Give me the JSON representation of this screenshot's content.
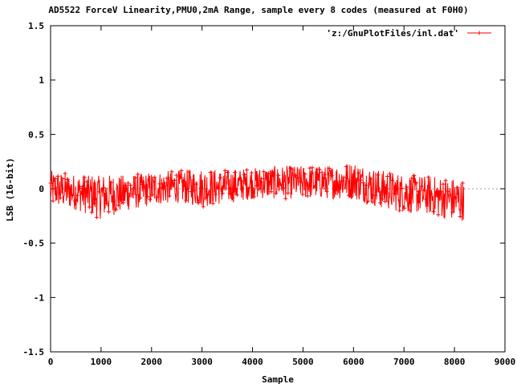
{
  "chart_data": {
    "type": "line",
    "title": "AD5522 ForceV Linearity,PMU0,2mA Range, sample every 8 codes (measured at F0H0)",
    "xlabel": "Sample",
    "ylabel": "LSB (16-bit)",
    "xlim": [
      0,
      9000
    ],
    "ylim": [
      -1.5,
      1.5
    ],
    "x_ticks": [
      0,
      1000,
      2000,
      3000,
      4000,
      5000,
      6000,
      7000,
      8000,
      9000
    ],
    "y_ticks": [
      -1.5,
      -1,
      -0.5,
      0,
      0.5,
      1,
      1.5
    ],
    "x_tick_labels": [
      "0",
      "1000",
      "2000",
      "3000",
      "4000",
      "5000",
      "6000",
      "7000",
      "8000",
      "9000"
    ],
    "y_tick_labels": [
      "-1.5",
      "-1",
      "-0.5",
      "0",
      "0.5",
      "1",
      "1.5"
    ],
    "grid": false,
    "legend_position": "top-right",
    "zero_line": true,
    "series": [
      {
        "name": "'z:/GnuPlotFiles/inl.dat'",
        "color": "#ff0000",
        "marker": "plus",
        "x_range": [
          0,
          8184
        ],
        "profile": {
          "x": [
            0,
            500,
            1000,
            1500,
            2000,
            2500,
            3000,
            3500,
            4000,
            4500,
            5000,
            5500,
            6000,
            6500,
            7000,
            7500,
            8000,
            8184
          ],
          "mean": [
            0.0,
            -0.03,
            -0.07,
            -0.04,
            0.0,
            0.02,
            0.01,
            0.02,
            0.05,
            0.06,
            0.06,
            0.06,
            0.08,
            0.0,
            -0.04,
            -0.06,
            -0.1,
            -0.11
          ],
          "upper": [
            0.17,
            0.12,
            0.12,
            0.12,
            0.15,
            0.18,
            0.2,
            0.2,
            0.22,
            0.24,
            0.24,
            0.24,
            0.29,
            0.2,
            0.15,
            0.12,
            0.1,
            0.08
          ],
          "lower": [
            -0.2,
            -0.25,
            -0.35,
            -0.25,
            -0.2,
            -0.15,
            -0.2,
            -0.15,
            -0.1,
            -0.1,
            -0.1,
            -0.1,
            -0.1,
            -0.2,
            -0.25,
            -0.28,
            -0.35,
            -0.33
          ]
        }
      }
    ]
  }
}
